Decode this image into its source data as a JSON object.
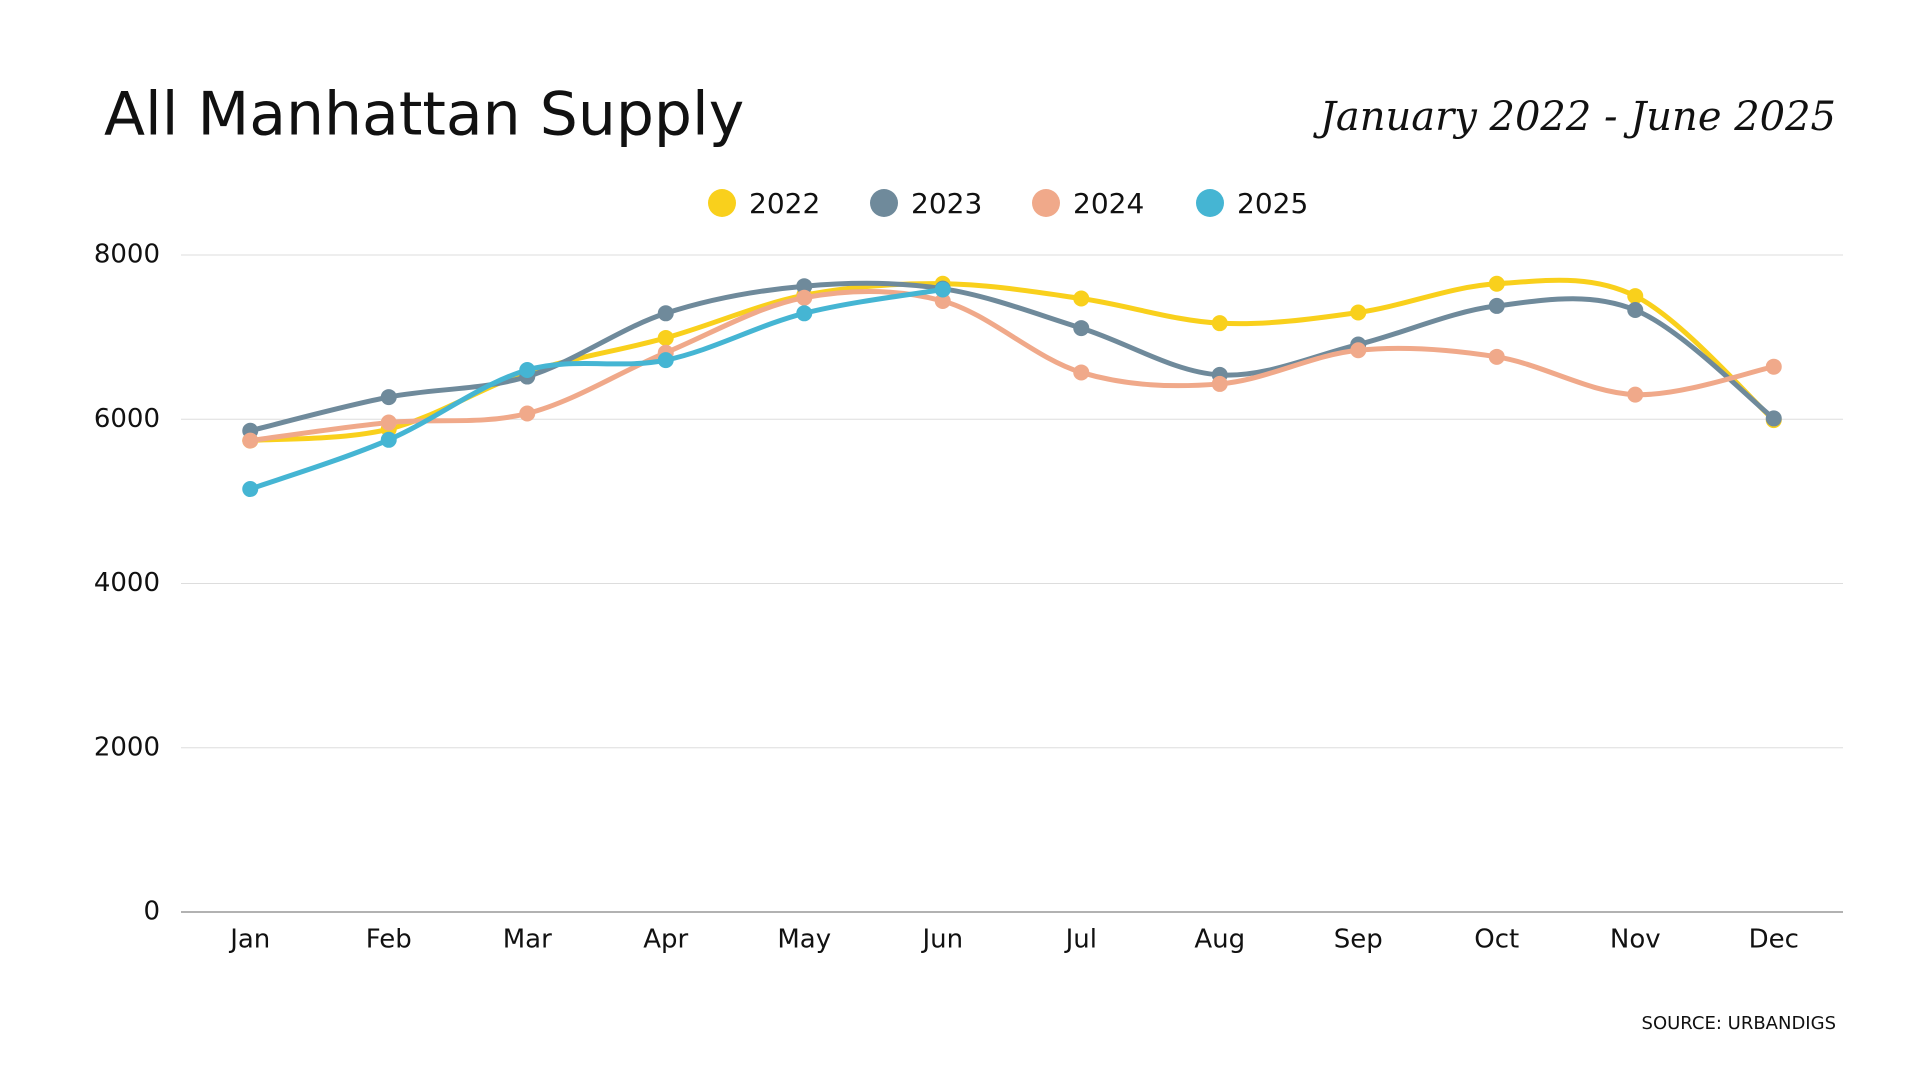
{
  "chart_data": {
    "type": "line",
    "title": "All Manhattan Supply",
    "subtitle": "January 2022 - June 2025",
    "source": "SOURCE: URBANDIGS",
    "categories": [
      "Jan",
      "Feb",
      "Mar",
      "Apr",
      "May",
      "Jun",
      "Jul",
      "Aug",
      "Sep",
      "Oct",
      "Nov",
      "Dec"
    ],
    "series": [
      {
        "name": "2022",
        "color": "#f9d01c",
        "values": [
          5740,
          5880,
          6570,
          6990,
          7510,
          7650,
          7470,
          7170,
          7300,
          7650,
          7500,
          5990
        ]
      },
      {
        "name": "2023",
        "color": "#6f8a9b",
        "values": [
          5860,
          6270,
          6520,
          7290,
          7620,
          7590,
          7110,
          6540,
          6910,
          7380,
          7330,
          6010
        ]
      },
      {
        "name": "2024",
        "color": "#f0a98a",
        "values": [
          5740,
          5960,
          6070,
          6810,
          7480,
          7440,
          6570,
          6430,
          6840,
          6760,
          6300,
          6640
        ]
      },
      {
        "name": "2025",
        "color": "#45b5d3",
        "values": [
          5150,
          5750,
          6600,
          6720,
          7290,
          7580,
          null,
          null,
          null,
          null,
          null,
          null
        ]
      }
    ],
    "ylim": [
      0,
      8000
    ],
    "yticks": [
      0,
      2000,
      4000,
      6000,
      8000
    ],
    "grid": true,
    "legend": "top",
    "smooth": true
  }
}
